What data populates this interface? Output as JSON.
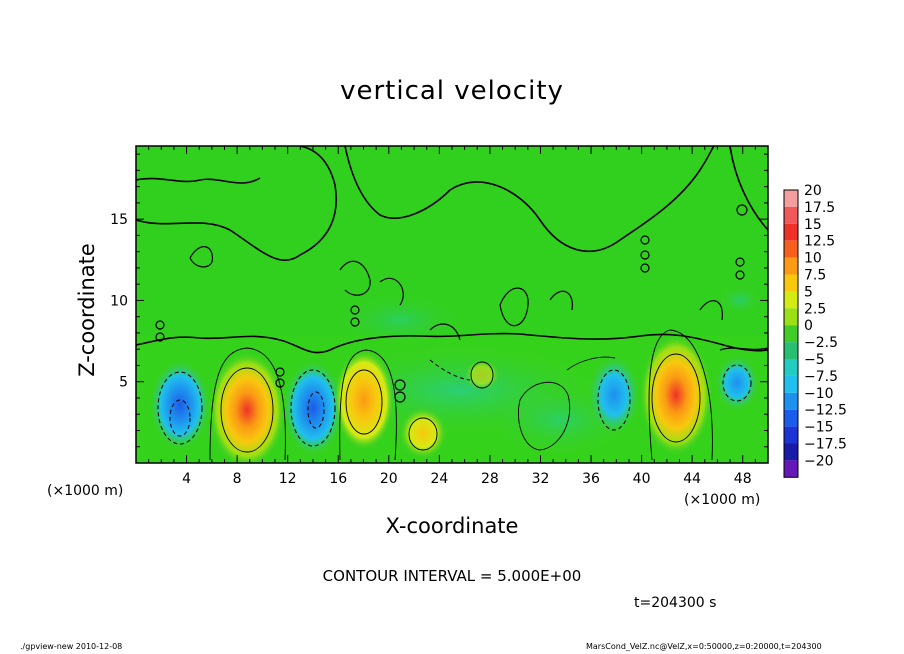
{
  "title": "vertical velocity",
  "footer": {
    "left": "./gpview-new   2010-12-08",
    "right": "MarsCond_VelZ.nc@VelZ,x=0:50000,z=0:20000,t=204300"
  },
  "contour_interval": "CONTOUR INTERVAL = 5.000E+00",
  "time_label": "t=204300  s",
  "x_unit_left": "(×1000 m)",
  "x_unit_right": "(×1000 m)",
  "colors": {
    "background_field": "#29d41a",
    "contour_line": "#000000"
  },
  "chart_data": {
    "type": "heatmap",
    "title": "vertical velocity",
    "xlabel": "X-coordinate",
    "ylabel": "Z-coordinate",
    "xlim": [
      0,
      50
    ],
    "ylim": [
      0,
      19.5
    ],
    "xticks": [
      "4",
      "8",
      "12",
      "16",
      "20",
      "24",
      "28",
      "32",
      "36",
      "40",
      "44",
      "48"
    ],
    "xtick_values": [
      4,
      8,
      12,
      16,
      20,
      24,
      28,
      32,
      36,
      40,
      44,
      48
    ],
    "yticks": [
      "5",
      "10",
      "15"
    ],
    "ytick_values": [
      5,
      10,
      15
    ],
    "colorbar": {
      "levels": [
        "20",
        "17.5",
        "15",
        "12.5",
        "10",
        "7.5",
        "5",
        "2.5",
        "0",
        "−2.5",
        "−5",
        "−7.5",
        "−10",
        "−12.5",
        "−15",
        "−17.5",
        "−20"
      ],
      "colors": [
        "#f49ea0",
        "#f0585a",
        "#ee3228",
        "#f7601c",
        "#fb9a14",
        "#f8c80e",
        "#d4ea14",
        "#9be014",
        "#41cc28",
        "#28c070",
        "#22ccc0",
        "#20c0ee",
        "#1e90ee",
        "#1c5cea",
        "#1c34d6",
        "#1a1aa8",
        "#6618b6"
      ]
    },
    "features": [
      {
        "name": "downdraft",
        "x": 3.5,
        "z": 3.0,
        "value": -10
      },
      {
        "name": "updraft",
        "x": 8.8,
        "z": 3.2,
        "value": 12.5
      },
      {
        "name": "downdraft",
        "x": 14.0,
        "z": 3.2,
        "value": -10
      },
      {
        "name": "updraft",
        "x": 17.9,
        "z": 3.9,
        "value": 10
      },
      {
        "name": "updraft",
        "x": 22.5,
        "z": 2.0,
        "value": 7.5
      },
      {
        "name": "downdraft",
        "x": 38.2,
        "z": 4.0,
        "value": -7.5
      },
      {
        "name": "updraft",
        "x": 42.8,
        "z": 4.5,
        "value": 12.5
      },
      {
        "name": "downdraft",
        "x": 47.2,
        "z": 4.5,
        "value": -5
      }
    ]
  }
}
